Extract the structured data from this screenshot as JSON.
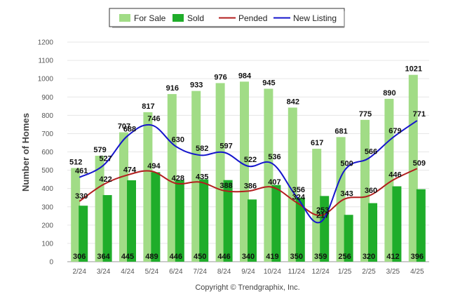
{
  "chart_data": {
    "type": "bar",
    "categories": [
      "2/24",
      "3/24",
      "4/24",
      "5/24",
      "6/24",
      "7/24",
      "8/24",
      "9/24",
      "10/24",
      "11/24",
      "12/24",
      "1/25",
      "2/25",
      "3/25",
      "4/25"
    ],
    "series": [
      {
        "name": "For Sale",
        "kind": "bar",
        "color": "#a1dc86",
        "values": [
          512,
          579,
          707,
          817,
          916,
          933,
          976,
          984,
          945,
          842,
          617,
          681,
          775,
          890,
          1021
        ]
      },
      {
        "name": "Sold",
        "kind": "bar",
        "color": "#1fad2a",
        "values": [
          306,
          364,
          445,
          489,
          446,
          450,
          446,
          340,
          419,
          350,
          359,
          256,
          320,
          412,
          396
        ]
      },
      {
        "name": "Pended",
        "kind": "line",
        "color": "#b21e1e",
        "values": [
          330,
          422,
          474,
          494,
          428,
          435,
          388,
          386,
          407,
          324,
          253,
          343,
          360,
          446,
          509
        ]
      },
      {
        "name": "New Listing",
        "kind": "line",
        "color": "#1515cc",
        "values": [
          461,
          527,
          688,
          746,
          630,
          582,
          597,
          522,
          536,
          356,
          217,
          500,
          566,
          679,
          771
        ]
      }
    ],
    "ylabel": "Number of Homes",
    "xlabel": "",
    "ylim": [
      0,
      1200
    ],
    "yticks": [
      0,
      100,
      200,
      300,
      400,
      500,
      600,
      700,
      800,
      900,
      1000,
      1100,
      1200
    ],
    "grid": true,
    "legend_position": "top-center",
    "credit": "Copyright © Trendgraphix, Inc."
  }
}
